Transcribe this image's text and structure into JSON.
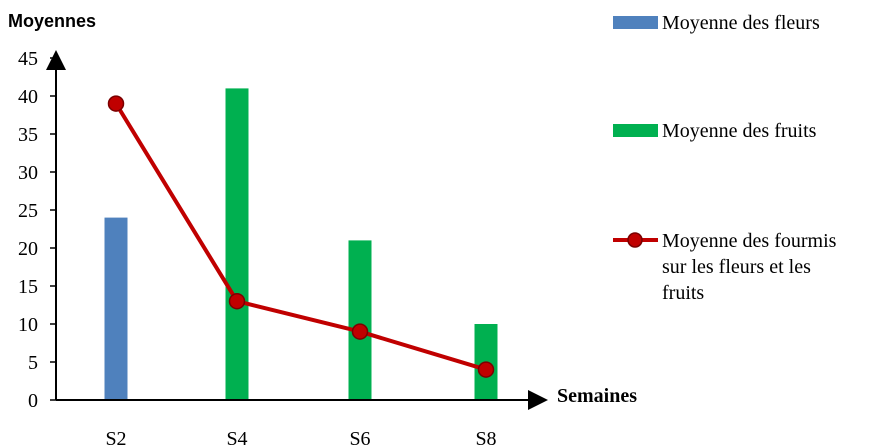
{
  "chart_data": {
    "type": "bar",
    "title": "",
    "ylabel": "Moyennes",
    "xlabel": "Semaines",
    "categories": [
      "S2",
      "S4",
      "S6",
      "S8"
    ],
    "ylim": [
      0,
      45
    ],
    "yticks": [
      0,
      5,
      10,
      15,
      20,
      25,
      30,
      35,
      40,
      45
    ],
    "grid": false,
    "legend_position": "right",
    "series": [
      {
        "name": "Moyenne des fleurs",
        "kind": "bar",
        "color": "#4f81bd",
        "values": [
          24,
          null,
          null,
          null
        ]
      },
      {
        "name": "Moyenne des fruits",
        "kind": "bar",
        "color": "#00b050",
        "values": [
          null,
          41,
          21,
          10
        ]
      },
      {
        "name": "Moyenne des fourmis sur les fleurs et les fruits",
        "legend_lines": [
          "Moyenne des fourmis",
          "sur les fleurs et les",
          "fruits"
        ],
        "kind": "line",
        "color": "#c00000",
        "marker_color": "#c00000",
        "values": [
          39,
          13,
          9,
          4
        ]
      }
    ]
  }
}
